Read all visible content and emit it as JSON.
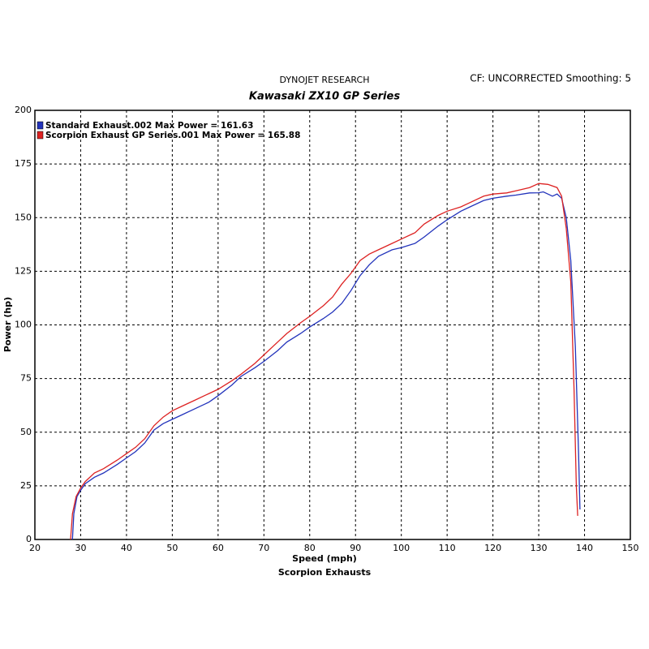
{
  "chart_data": {
    "type": "line",
    "title": "DYNOJET RESEARCH",
    "subtitle": "Kawasaki ZX10 GP Series",
    "annotation": "CF: UNCORRECTED  Smoothing: 5",
    "footer": "Scorpion Exhausts",
    "xlabel": "Speed (mph)",
    "ylabel": "Power (hp)",
    "xlim": [
      20,
      150
    ],
    "ylim": [
      0,
      200
    ],
    "xticks": [
      20,
      30,
      40,
      50,
      60,
      70,
      80,
      90,
      100,
      110,
      120,
      130,
      140,
      150
    ],
    "yticks": [
      0,
      25,
      50,
      75,
      100,
      125,
      150,
      175,
      200
    ],
    "grid": true,
    "legend": "upper left",
    "series": [
      {
        "name": "Standard Exhaust.002 Max Power = 161.63",
        "color": "#2233bb",
        "x": [
          28.2,
          28.5,
          29.2,
          30,
          31,
          33,
          35,
          38,
          40,
          42,
          44,
          46,
          48,
          50,
          52,
          55,
          58,
          60,
          63,
          65,
          68,
          70,
          73,
          75,
          78,
          80,
          83,
          85,
          87,
          89,
          91,
          93,
          95,
          98,
          100,
          103,
          105,
          108,
          110,
          113,
          115,
          118,
          120,
          123,
          125,
          128,
          130,
          131,
          132,
          133,
          134,
          135,
          136,
          137,
          138,
          138.7,
          139
        ],
        "values": [
          0,
          12,
          20,
          23,
          26,
          29,
          31,
          35,
          38,
          41,
          45,
          51,
          54,
          56,
          58,
          61,
          64,
          67,
          72,
          76,
          80,
          83,
          88,
          92,
          96,
          99,
          103,
          106,
          110,
          116,
          123,
          128,
          132,
          135,
          136,
          138,
          141,
          146,
          149,
          153,
          155,
          158,
          159,
          160,
          160.5,
          161.5,
          161.6,
          162,
          161,
          160,
          161,
          159,
          150,
          130,
          90,
          40,
          14
        ]
      },
      {
        "name": "Scorpion Exhaust GP Series.001 Max Power = 165.88",
        "color": "#dd2222",
        "x": [
          27.8,
          28.2,
          29,
          30,
          31,
          33,
          35,
          38,
          40,
          42,
          44,
          46,
          48,
          50,
          52,
          55,
          58,
          60,
          63,
          65,
          68,
          70,
          73,
          75,
          78,
          80,
          83,
          85,
          87,
          89,
          91,
          93,
          95,
          98,
          100,
          103,
          105,
          108,
          110,
          113,
          115,
          118,
          120,
          123,
          125,
          128,
          130,
          132,
          134,
          135,
          136,
          137,
          137.7,
          138.2,
          138.5
        ],
        "values": [
          0,
          12,
          20,
          24,
          27,
          31,
          33,
          37,
          40,
          43,
          47,
          53,
          57,
          60,
          62,
          65,
          68,
          70,
          74,
          77,
          82,
          86,
          92,
          96,
          101,
          104,
          109,
          113,
          119,
          124,
          130,
          133,
          135,
          138,
          140,
          143,
          147,
          151,
          153,
          155,
          157,
          160,
          161,
          161.5,
          162.5,
          164,
          165.9,
          165.5,
          164,
          160,
          145,
          120,
          70,
          25,
          11
        ]
      }
    ]
  }
}
